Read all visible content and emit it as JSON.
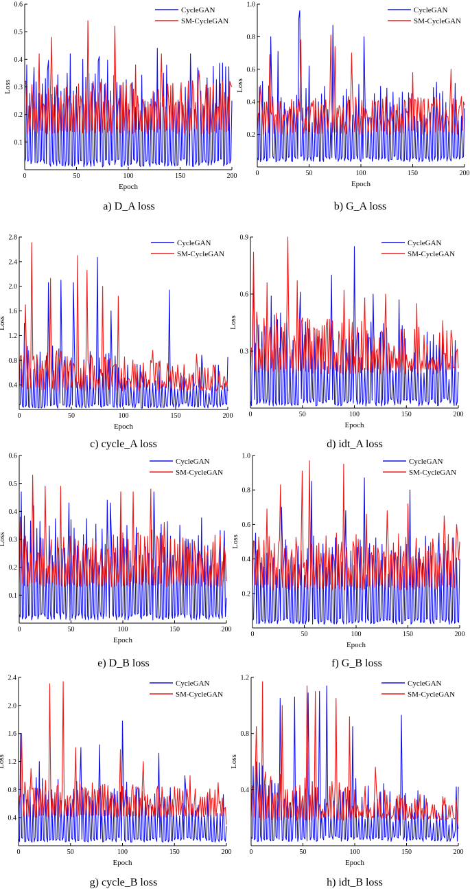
{
  "colors": {
    "cyclegan": "#1010ee",
    "smcyclegan": "#ee1a1a"
  },
  "chart_data": [
    {
      "type": "line",
      "caption": "a) D_A loss",
      "xlabel": "Epoch",
      "ylabel": "Loss",
      "xlim": [
        0,
        200
      ],
      "ylim": [
        0,
        0.6
      ],
      "xticks": [
        0,
        50,
        100,
        150,
        200
      ],
      "yticks": [
        0.1,
        0.2,
        0.3,
        0.4,
        0.5,
        0.6
      ],
      "ytick_labels": [
        "0.1",
        "0.2",
        "0.3",
        "0.4",
        "0.5",
        "0.6"
      ],
      "legend": [
        "CycleGAN",
        "SM-CycleGAN"
      ],
      "series": [
        {
          "name": "CycleGAN",
          "color": "#1010ee",
          "min": 0.01,
          "base": 0.28,
          "amp": 0.12,
          "period": 3,
          "end": 0.25,
          "peaks": [
            [
              2,
              0.38
            ],
            [
              9,
              0.37
            ],
            [
              22,
              0.36
            ],
            [
              44,
              0.42
            ],
            [
              56,
              0.4
            ],
            [
              72,
              0.41
            ],
            [
              128,
              0.44
            ],
            [
              160,
              0.42
            ]
          ]
        },
        {
          "name": "SM-CycleGAN",
          "color": "#ee1a1a",
          "min": 0.13,
          "base": 0.25,
          "amp": 0.07,
          "period": 2.4,
          "end": 0.3,
          "peaks": [
            [
              0,
              0.32
            ],
            [
              14,
              0.42
            ],
            [
              26,
              0.48
            ],
            [
              61,
              0.54
            ],
            [
              87,
              0.52
            ],
            [
              107,
              0.38
            ],
            [
              132,
              0.42
            ],
            [
              168,
              0.36
            ],
            [
              198,
              0.32
            ]
          ]
        }
      ]
    },
    {
      "type": "line",
      "caption": "b) G_A loss",
      "xlabel": "Epoch",
      "ylabel": "Loss",
      "xlim": [
        0,
        200
      ],
      "ylim": [
        0,
        1.0
      ],
      "xticks": [
        0,
        50,
        100,
        150,
        200
      ],
      "yticks": [
        0.2,
        0.4,
        0.6,
        0.8,
        1.0
      ],
      "ytick_labels": [
        "0.2",
        "0.4",
        "0.6",
        "0.8",
        "1.0"
      ],
      "legend": [
        "CycleGAN",
        "SM-CycleGAN"
      ],
      "series": [
        {
          "name": "CycleGAN",
          "color": "#1010ee",
          "min": 0.03,
          "base": 0.36,
          "amp": 0.16,
          "period": 3,
          "end": 0.36,
          "peaks": [
            [
              13,
              0.8
            ],
            [
              20,
              0.71
            ],
            [
              40,
              0.91
            ],
            [
              41,
              0.96
            ],
            [
              50,
              0.62
            ],
            [
              73,
              0.87
            ],
            [
              103,
              0.8
            ],
            [
              140,
              0.46
            ]
          ]
        },
        {
          "name": "SM-CycleGAN",
          "color": "#ee1a1a",
          "min": 0.2,
          "base": 0.33,
          "amp": 0.1,
          "period": 2.6,
          "end": 0.38,
          "peaks": [
            [
              3,
              0.5
            ],
            [
              12,
              0.69
            ],
            [
              42,
              0.78
            ],
            [
              71,
              0.81
            ],
            [
              75,
              0.74
            ],
            [
              91,
              0.7
            ],
            [
              150,
              0.58
            ],
            [
              187,
              0.6
            ],
            [
              199,
              0.4
            ]
          ]
        }
      ]
    },
    {
      "type": "line",
      "caption": "c) cycle_A loss",
      "xlabel": "Epoch",
      "ylabel": "Loss",
      "xlim": [
        0,
        200
      ],
      "ylim": [
        0,
        2.8
      ],
      "xticks": [
        0,
        50,
        100,
        150,
        200
      ],
      "yticks": [
        0.4,
        0.8,
        1.2,
        1.6,
        2.0,
        2.4,
        2.8
      ],
      "ytick_labels": [
        "0.4",
        "0.8",
        "1.2",
        "1.6",
        "2.0",
        "2.4",
        "2.8"
      ],
      "legend": [
        "CycleGAN",
        "SM-CycleGAN"
      ],
      "series": [
        {
          "name": "CycleGAN",
          "color": "#1010ee",
          "min": 0.02,
          "base": 0.75,
          "amp": 0.35,
          "period": 3,
          "end": 0.85,
          "decay": 0.55,
          "peaks": [
            [
              5,
              1.4
            ],
            [
              28,
              2.06
            ],
            [
              40,
              2.1
            ],
            [
              52,
              2.06
            ],
            [
              75,
              2.47
            ],
            [
              88,
              1.6
            ],
            [
              144,
              1.94
            ],
            [
              175,
              0.88
            ]
          ]
        },
        {
          "name": "SM-CycleGAN",
          "color": "#ee1a1a",
          "min": 0.3,
          "base": 0.7,
          "amp": 0.3,
          "period": 2.6,
          "end": 0.3,
          "decay": 0.5,
          "peaks": [
            [
              6,
              1.7
            ],
            [
              12,
              2.71
            ],
            [
              30,
              2.13
            ],
            [
              56,
              2.5
            ],
            [
              65,
              2.26
            ],
            [
              80,
              2.0
            ],
            [
              95,
              1.84
            ],
            [
              128,
              0.96
            ],
            [
              170,
              0.9
            ]
          ]
        }
      ]
    },
    {
      "type": "line",
      "caption": "d) idt_A loss",
      "xlabel": "Epoch",
      "ylabel": "Loss",
      "xlim": [
        0,
        200
      ],
      "ylim": [
        0,
        0.9
      ],
      "xticks": [
        0,
        50,
        100,
        150,
        200
      ],
      "yticks": [
        0.3,
        0.6,
        0.9
      ],
      "ytick_labels": [
        "0.3",
        "0.6",
        "0.9"
      ],
      "legend": [
        "CycleGAN",
        "SM-CycleGAN"
      ],
      "series": [
        {
          "name": "CycleGAN",
          "color": "#1010ee",
          "min": 0.01,
          "base": 0.35,
          "amp": 0.17,
          "period": 3,
          "end": 0.19,
          "decay": 0.35,
          "peaks": [
            [
              3,
              0.72
            ],
            [
              20,
              0.59
            ],
            [
              48,
              0.61
            ],
            [
              78,
              0.7
            ],
            [
              100,
              0.85
            ],
            [
              118,
              0.6
            ],
            [
              143,
              0.57
            ],
            [
              170,
              0.4
            ]
          ]
        },
        {
          "name": "SM-CycleGAN",
          "color": "#ee1a1a",
          "min": 0.18,
          "base": 0.38,
          "amp": 0.13,
          "period": 2.4,
          "end": 0.21,
          "decay": 0.3,
          "peaks": [
            [
              3,
              0.82
            ],
            [
              16,
              0.66
            ],
            [
              36,
              0.9
            ],
            [
              45,
              0.67
            ],
            [
              90,
              0.62
            ],
            [
              110,
              0.58
            ],
            [
              130,
              0.6
            ],
            [
              160,
              0.55
            ],
            [
              185,
              0.46
            ]
          ]
        }
      ]
    },
    {
      "type": "line",
      "caption": "e) D_B loss",
      "xlabel": "Epoch",
      "ylabel": "Loss",
      "xlim": [
        0,
        200
      ],
      "ylim": [
        0,
        0.6
      ],
      "xticks": [
        0,
        50,
        100,
        150,
        200
      ],
      "yticks": [
        0.1,
        0.2,
        0.3,
        0.4,
        0.5,
        0.6
      ],
      "ytick_labels": [
        "0.1",
        "0.2",
        "0.3",
        "0.4",
        "0.5",
        "0.6"
      ],
      "legend": [
        "CycleGAN",
        "SM-CycleGAN"
      ],
      "series": [
        {
          "name": "CycleGAN",
          "color": "#1010ee",
          "min": 0.01,
          "base": 0.26,
          "amp": 0.12,
          "period": 3,
          "end": 0.09,
          "peaks": [
            [
              2,
              0.47
            ],
            [
              14,
              0.42
            ],
            [
              48,
              0.43
            ],
            [
              85,
              0.44
            ],
            [
              88,
              0.43
            ],
            [
              130,
              0.47
            ],
            [
              163,
              0.3
            ],
            [
              198,
              0.33
            ]
          ]
        },
        {
          "name": "SM-CycleGAN",
          "color": "#ee1a1a",
          "min": 0.13,
          "base": 0.24,
          "amp": 0.08,
          "period": 2.4,
          "end": 0.15,
          "peaks": [
            [
              1,
              0.38
            ],
            [
              13,
              0.53
            ],
            [
              25,
              0.49
            ],
            [
              40,
              0.49
            ],
            [
              98,
              0.47
            ],
            [
              110,
              0.47
            ],
            [
              127,
              0.48
            ],
            [
              140,
              0.36
            ],
            [
              170,
              0.25
            ]
          ]
        }
      ]
    },
    {
      "type": "line",
      "caption": "f) G_B loss",
      "xlabel": "Epoch",
      "ylabel": "Loss",
      "xlim": [
        0,
        200
      ],
      "ylim": [
        0,
        1.0
      ],
      "xticks": [
        0,
        50,
        100,
        150,
        200
      ],
      "yticks": [
        0.2,
        0.4,
        0.6,
        0.8,
        1.0
      ],
      "ytick_labels": [
        "0.2",
        "0.4",
        "0.6",
        "0.8",
        "1.0"
      ],
      "legend": [
        "CycleGAN",
        "SM-CycleGAN"
      ],
      "series": [
        {
          "name": "CycleGAN",
          "color": "#1010ee",
          "min": 0.02,
          "base": 0.38,
          "amp": 0.15,
          "period": 3,
          "end": 0.4,
          "peaks": [
            [
              3,
              0.55
            ],
            [
              28,
              0.7
            ],
            [
              57,
              0.85
            ],
            [
              90,
              0.68
            ],
            [
              108,
              0.87
            ],
            [
              152,
              0.8
            ],
            [
              180,
              0.55
            ]
          ]
        },
        {
          "name": "SM-CycleGAN",
          "color": "#ee1a1a",
          "min": 0.22,
          "base": 0.42,
          "amp": 0.13,
          "period": 2.4,
          "end": 0.5,
          "peaks": [
            [
              14,
              0.69
            ],
            [
              27,
              0.83
            ],
            [
              48,
              0.91
            ],
            [
              55,
              0.97
            ],
            [
              88,
              0.95
            ],
            [
              110,
              0.66
            ],
            [
              130,
              0.68
            ],
            [
              150,
              0.72
            ],
            [
              185,
              0.65
            ],
            [
              197,
              0.6
            ]
          ]
        }
      ]
    },
    {
      "type": "line",
      "caption": "g) cycle_B loss",
      "xlabel": "Epoch",
      "ylabel": "Loss",
      "xlim": [
        0,
        200
      ],
      "ylim": [
        0,
        2.4
      ],
      "xticks": [
        0,
        50,
        100,
        150,
        200
      ],
      "yticks": [
        0.4,
        0.8,
        1.2,
        1.6,
        2.0,
        2.4
      ],
      "ytick_labels": [
        "0.4",
        "0.8",
        "1.2",
        "1.6",
        "2.0",
        "2.4"
      ],
      "legend": [
        "CycleGAN",
        "SM-CycleGAN"
      ],
      "series": [
        {
          "name": "CycleGAN",
          "color": "#1010ee",
          "min": 0.05,
          "base": 0.75,
          "amp": 0.28,
          "period": 3,
          "end": 0.28,
          "decay": 0.3,
          "peaks": [
            [
              2,
              1.6
            ],
            [
              20,
              1.2
            ],
            [
              60,
              1.4
            ],
            [
              78,
              1.44
            ],
            [
              100,
              1.78
            ],
            [
              135,
              1.32
            ],
            [
              160,
              1.0
            ]
          ]
        },
        {
          "name": "SM-CycleGAN",
          "color": "#ee1a1a",
          "min": 0.4,
          "base": 0.78,
          "amp": 0.18,
          "period": 2.4,
          "end": 0.3,
          "decay": 0.25,
          "peaks": [
            [
              3,
              1.6
            ],
            [
              12,
              1.1
            ],
            [
              30,
              2.31
            ],
            [
              43,
              2.34
            ],
            [
              55,
              1.4
            ],
            [
              98,
              1.37
            ],
            [
              120,
              1.2
            ],
            [
              165,
              1.0
            ],
            [
              192,
              0.9
            ]
          ]
        }
      ]
    },
    {
      "type": "line",
      "caption": "h) idt_B loss",
      "xlabel": "Epoch",
      "ylabel": "Loss",
      "xlim": [
        0,
        200
      ],
      "ylim": [
        0,
        1.2
      ],
      "xticks": [
        0,
        50,
        100,
        150,
        200
      ],
      "yticks": [
        0.4,
        0.8,
        1.2
      ],
      "ytick_labels": [
        "0.4",
        "0.8",
        "1.2"
      ],
      "legend": [
        "CycleGAN",
        "SM-CycleGAN"
      ],
      "series": [
        {
          "name": "CycleGAN",
          "color": "#1010ee",
          "min": 0.03,
          "base": 0.42,
          "amp": 0.18,
          "period": 3,
          "end": 0.42,
          "decay": 0.6,
          "peaks": [
            [
              28,
              1.05
            ],
            [
              42,
              1.06
            ],
            [
              55,
              1.09
            ],
            [
              66,
              1.1
            ],
            [
              73,
              1.14
            ],
            [
              98,
              0.85
            ],
            [
              145,
              0.93
            ],
            [
              198,
              0.42
            ]
          ]
        },
        {
          "name": "SM-CycleGAN",
          "color": "#ee1a1a",
          "min": 0.18,
          "base": 0.4,
          "amp": 0.14,
          "period": 2.4,
          "end": 0.12,
          "decay": 0.6,
          "peaks": [
            [
              5,
              0.85
            ],
            [
              11,
              1.17
            ],
            [
              30,
              1.0
            ],
            [
              54,
              1.14
            ],
            [
              62,
              1.1
            ],
            [
              82,
              1.05
            ],
            [
              95,
              0.92
            ],
            [
              120,
              0.56
            ],
            [
              185,
              0.35
            ]
          ]
        }
      ]
    }
  ]
}
